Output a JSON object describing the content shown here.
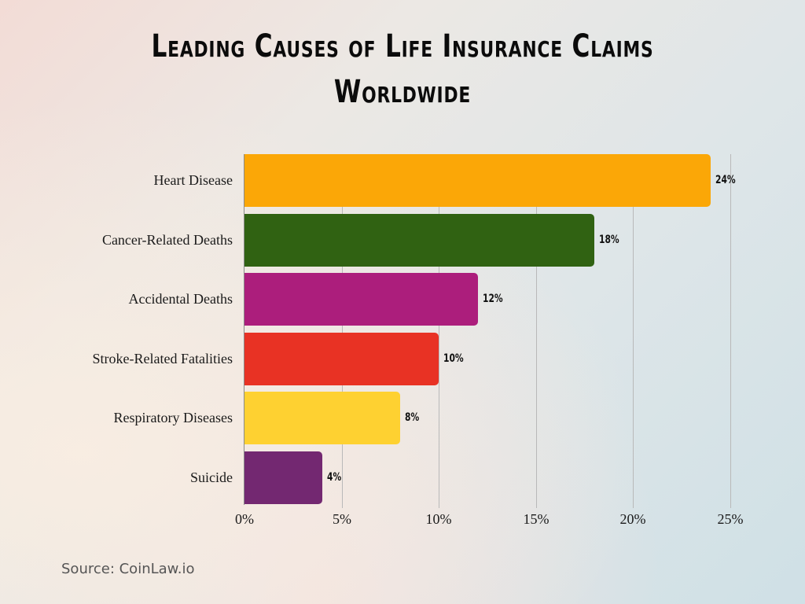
{
  "title_line1": "Leading Causes of Life Insurance Claims",
  "title_line2": "Worldwide",
  "source": "Source: CoinLaw.io",
  "chart_data": {
    "type": "bar",
    "orientation": "horizontal",
    "title": "Leading Causes of Life Insurance Claims Worldwide",
    "xlabel": "",
    "ylabel": "",
    "categories": [
      "Heart Disease",
      "Cancer-Related Deaths",
      "Accidental Deaths",
      "Stroke-Related Fatalities",
      "Respiratory Diseases",
      "Suicide"
    ],
    "values": [
      24,
      18,
      12,
      10,
      8,
      4
    ],
    "value_labels": [
      "24%",
      "18%",
      "12%",
      "10%",
      "8%",
      "4%"
    ],
    "colors": [
      "#fba707",
      "#306212",
      "#ac1e7c",
      "#e83224",
      "#fed131",
      "#732871"
    ],
    "xlim": [
      0,
      25
    ],
    "x_ticks": [
      "0%",
      "5%",
      "10%",
      "15%",
      "20%",
      "25%"
    ],
    "grid": "vertical",
    "legend": "none"
  }
}
